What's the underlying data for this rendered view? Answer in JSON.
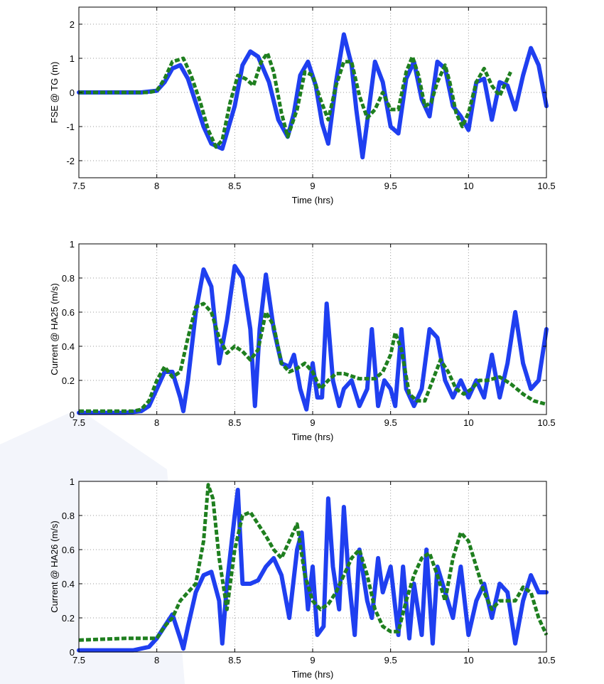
{
  "colors": {
    "series_solid": "#1f3ff0",
    "series_dashed": "#1f7f1f"
  },
  "chart_data": [
    {
      "type": "line",
      "xlabel": "Time (hrs)",
      "ylabel": "FSE @ TG (m)",
      "xlim": [
        7.5,
        10.5
      ],
      "ylim": [
        -2.5,
        2.5
      ],
      "grid": true,
      "x_ticks": [
        7.5,
        8,
        8.5,
        9,
        9.5,
        10,
        10.5
      ],
      "x_tick_labels": [
        "7.5",
        "8",
        "8.5",
        "9",
        "9.5",
        "10",
        "10.5"
      ],
      "y_ticks": [
        -2,
        -1,
        0,
        1,
        2
      ],
      "y_tick_labels": [
        "-2",
        "-1",
        "0",
        "1",
        "2"
      ],
      "series": [
        {
          "style": "solid",
          "x": [
            7.5,
            7.9,
            8.0,
            8.05,
            8.1,
            8.15,
            8.2,
            8.25,
            8.3,
            8.35,
            8.42,
            8.5,
            8.55,
            8.6,
            8.65,
            8.72,
            8.78,
            8.84,
            8.88,
            8.92,
            8.97,
            9.02,
            9.06,
            9.1,
            9.15,
            9.2,
            9.25,
            9.28,
            9.32,
            9.36,
            9.4,
            9.45,
            9.5,
            9.55,
            9.6,
            9.65,
            9.7,
            9.75,
            9.8,
            9.85,
            9.9,
            9.95,
            10.0,
            10.05,
            10.1,
            10.15,
            10.2,
            10.25,
            10.3,
            10.35,
            10.4,
            10.45,
            10.5
          ],
          "y": [
            0.0,
            0.0,
            0.05,
            0.3,
            0.7,
            0.8,
            0.4,
            -0.3,
            -1.0,
            -1.5,
            -1.65,
            -0.4,
            0.8,
            1.2,
            1.05,
            0.3,
            -0.8,
            -1.3,
            -0.6,
            0.5,
            0.9,
            0.2,
            -0.9,
            -1.5,
            0.3,
            1.7,
            0.8,
            -0.5,
            -1.9,
            -0.5,
            0.9,
            0.3,
            -1.0,
            -1.2,
            0.4,
            0.9,
            -0.2,
            -0.7,
            0.9,
            0.7,
            -0.4,
            -0.7,
            -1.1,
            0.3,
            0.4,
            -0.8,
            0.3,
            0.2,
            -0.5,
            0.5,
            1.3,
            0.8,
            -0.4
          ]
        },
        {
          "style": "dashed",
          "x": [
            7.5,
            7.95,
            8.0,
            8.05,
            8.1,
            8.17,
            8.22,
            8.28,
            8.33,
            8.38,
            8.42,
            8.47,
            8.52,
            8.57,
            8.62,
            8.67,
            8.71,
            8.75,
            8.8,
            8.84,
            8.9,
            8.95,
            9.0,
            9.05,
            9.1,
            9.15,
            9.2,
            9.25,
            9.3,
            9.35,
            9.4,
            9.45,
            9.5,
            9.55,
            9.6,
            9.64,
            9.68,
            9.72,
            9.76,
            9.8,
            9.85,
            9.88,
            9.92,
            9.96,
            10.0,
            10.05,
            10.1,
            10.15,
            10.2,
            10.25,
            10.27
          ],
          "y": [
            0.0,
            0.0,
            0.05,
            0.4,
            0.9,
            1.0,
            0.5,
            -0.3,
            -1.1,
            -1.6,
            -1.4,
            -0.3,
            0.5,
            0.4,
            0.2,
            0.9,
            1.15,
            0.6,
            -0.6,
            -1.3,
            -0.5,
            0.6,
            0.5,
            -0.2,
            -0.8,
            0.2,
            0.9,
            0.9,
            -0.1,
            -0.75,
            -0.5,
            0.0,
            -0.5,
            -0.5,
            0.6,
            1.05,
            0.5,
            -0.4,
            -0.3,
            0.3,
            0.8,
            0.3,
            -0.6,
            -1.0,
            -0.6,
            0.3,
            0.7,
            0.2,
            -0.1,
            0.4,
            0.6
          ]
        }
      ]
    },
    {
      "type": "line",
      "xlabel": "Time (hrs)",
      "ylabel": "Current @ HA25 (m/s)",
      "xlim": [
        7.5,
        10.5
      ],
      "ylim": [
        0,
        1
      ],
      "grid": true,
      "x_ticks": [
        7.5,
        8,
        8.5,
        9,
        9.5,
        10,
        10.5
      ],
      "x_tick_labels": [
        "7.5",
        "8",
        "8.5",
        "9",
        "9.5",
        "10",
        "10.5"
      ],
      "y_ticks": [
        0,
        0.2,
        0.4,
        0.6,
        0.8,
        1
      ],
      "y_tick_labels": [
        "0",
        "0.2",
        "0.4",
        "0.6",
        "0.8",
        "1"
      ],
      "series": [
        {
          "style": "solid",
          "x": [
            7.5,
            7.8,
            7.9,
            7.95,
            8.0,
            8.05,
            8.1,
            8.15,
            8.17,
            8.2,
            8.25,
            8.3,
            8.35,
            8.4,
            8.45,
            8.5,
            8.55,
            8.6,
            8.63,
            8.66,
            8.7,
            8.75,
            8.8,
            8.85,
            8.88,
            8.92,
            8.96,
            9.0,
            9.03,
            9.06,
            9.09,
            9.13,
            9.17,
            9.2,
            9.25,
            9.3,
            9.35,
            9.38,
            9.42,
            9.46,
            9.5,
            9.53,
            9.57,
            9.6,
            9.65,
            9.7,
            9.75,
            9.8,
            9.85,
            9.9,
            9.95,
            10.0,
            10.05,
            10.1,
            10.15,
            10.2,
            10.25,
            10.3,
            10.35,
            10.4,
            10.45,
            10.5
          ],
          "y": [
            0.01,
            0.01,
            0.02,
            0.05,
            0.15,
            0.25,
            0.25,
            0.1,
            0.02,
            0.2,
            0.6,
            0.85,
            0.75,
            0.3,
            0.55,
            0.87,
            0.8,
            0.5,
            0.05,
            0.5,
            0.82,
            0.5,
            0.3,
            0.28,
            0.35,
            0.15,
            0.03,
            0.3,
            0.1,
            0.1,
            0.65,
            0.2,
            0.05,
            0.15,
            0.2,
            0.05,
            0.15,
            0.5,
            0.05,
            0.2,
            0.15,
            0.05,
            0.5,
            0.15,
            0.05,
            0.15,
            0.5,
            0.45,
            0.2,
            0.1,
            0.2,
            0.1,
            0.2,
            0.1,
            0.35,
            0.1,
            0.3,
            0.6,
            0.3,
            0.15,
            0.2,
            0.5
          ]
        },
        {
          "style": "dashed",
          "x": [
            7.5,
            7.85,
            7.9,
            7.95,
            8.0,
            8.05,
            8.1,
            8.15,
            8.2,
            8.25,
            8.3,
            8.35,
            8.4,
            8.45,
            8.5,
            8.55,
            8.6,
            8.65,
            8.7,
            8.75,
            8.8,
            8.85,
            8.9,
            8.95,
            9.0,
            9.05,
            9.1,
            9.15,
            9.2,
            9.3,
            9.4,
            9.45,
            9.5,
            9.53,
            9.57,
            9.62,
            9.67,
            9.72,
            9.77,
            9.82,
            9.87,
            9.92,
            9.97,
            10.02,
            10.07,
            10.12,
            10.2,
            10.27,
            10.35,
            10.42,
            10.5
          ],
          "y": [
            0.02,
            0.02,
            0.03,
            0.08,
            0.2,
            0.28,
            0.22,
            0.25,
            0.45,
            0.63,
            0.65,
            0.6,
            0.45,
            0.36,
            0.4,
            0.37,
            0.32,
            0.38,
            0.6,
            0.52,
            0.3,
            0.25,
            0.27,
            0.3,
            0.25,
            0.15,
            0.2,
            0.24,
            0.24,
            0.21,
            0.21,
            0.25,
            0.35,
            0.48,
            0.38,
            0.12,
            0.08,
            0.08,
            0.2,
            0.32,
            0.25,
            0.15,
            0.12,
            0.15,
            0.2,
            0.2,
            0.22,
            0.18,
            0.12,
            0.08,
            0.06
          ]
        }
      ]
    },
    {
      "type": "line",
      "xlabel": "Time (hrs)",
      "ylabel": "Current @ HA26 (m/s)",
      "xlim": [
        7.5,
        10.5
      ],
      "ylim": [
        0,
        1
      ],
      "grid": true,
      "x_ticks": [
        7.5,
        8,
        8.5,
        9,
        9.5,
        10,
        10.5
      ],
      "x_tick_labels": [
        "7.5",
        "8",
        "8.5",
        "9",
        "9.5",
        "10",
        "10.5"
      ],
      "y_ticks": [
        0,
        0.2,
        0.4,
        0.6,
        0.8,
        1
      ],
      "y_tick_labels": [
        "0",
        "0.2",
        "0.4",
        "0.6",
        "0.8",
        "1"
      ],
      "series": [
        {
          "style": "solid",
          "x": [
            7.5,
            7.85,
            7.95,
            8.0,
            8.05,
            8.1,
            8.15,
            8.17,
            8.2,
            8.25,
            8.3,
            8.35,
            8.4,
            8.42,
            8.45,
            8.5,
            8.52,
            8.55,
            8.6,
            8.65,
            8.7,
            8.75,
            8.8,
            8.85,
            8.9,
            8.93,
            8.97,
            9.0,
            9.03,
            9.07,
            9.1,
            9.13,
            9.17,
            9.2,
            9.23,
            9.27,
            9.3,
            9.35,
            9.38,
            9.42,
            9.45,
            9.5,
            9.55,
            9.58,
            9.62,
            9.65,
            9.7,
            9.73,
            9.77,
            9.8,
            9.85,
            9.9,
            9.95,
            10.0,
            10.05,
            10.1,
            10.15,
            10.2,
            10.25,
            10.3,
            10.35,
            10.4,
            10.45,
            10.5
          ],
          "y": [
            0.01,
            0.01,
            0.03,
            0.08,
            0.15,
            0.22,
            0.08,
            0.02,
            0.15,
            0.35,
            0.45,
            0.47,
            0.3,
            0.05,
            0.4,
            0.8,
            0.95,
            0.4,
            0.4,
            0.42,
            0.5,
            0.55,
            0.45,
            0.2,
            0.6,
            0.7,
            0.25,
            0.5,
            0.1,
            0.15,
            0.9,
            0.5,
            0.25,
            0.85,
            0.45,
            0.1,
            0.6,
            0.3,
            0.2,
            0.55,
            0.35,
            0.5,
            0.1,
            0.5,
            0.08,
            0.4,
            0.1,
            0.6,
            0.05,
            0.5,
            0.35,
            0.2,
            0.5,
            0.1,
            0.3,
            0.4,
            0.2,
            0.4,
            0.35,
            0.05,
            0.3,
            0.45,
            0.35,
            0.35
          ]
        },
        {
          "style": "dashed",
          "x": [
            7.5,
            7.8,
            7.9,
            8.0,
            8.05,
            8.1,
            8.15,
            8.2,
            8.25,
            8.3,
            8.33,
            8.36,
            8.4,
            8.45,
            8.5,
            8.55,
            8.6,
            8.65,
            8.7,
            8.75,
            8.8,
            8.85,
            8.9,
            8.95,
            9.0,
            9.05,
            9.1,
            9.15,
            9.2,
            9.25,
            9.3,
            9.35,
            9.4,
            9.45,
            9.5,
            9.55,
            9.6,
            9.65,
            9.7,
            9.75,
            9.8,
            9.85,
            9.9,
            9.95,
            10.0,
            10.05,
            10.1,
            10.15,
            10.2,
            10.25,
            10.3,
            10.35,
            10.4,
            10.45,
            10.5
          ],
          "y": [
            0.07,
            0.08,
            0.08,
            0.08,
            0.15,
            0.2,
            0.3,
            0.35,
            0.4,
            0.65,
            0.98,
            0.9,
            0.55,
            0.25,
            0.6,
            0.8,
            0.82,
            0.75,
            0.68,
            0.6,
            0.55,
            0.65,
            0.75,
            0.45,
            0.3,
            0.25,
            0.28,
            0.35,
            0.45,
            0.55,
            0.6,
            0.45,
            0.25,
            0.15,
            0.12,
            0.12,
            0.3,
            0.45,
            0.55,
            0.58,
            0.45,
            0.3,
            0.55,
            0.7,
            0.65,
            0.5,
            0.35,
            0.25,
            0.3,
            0.3,
            0.3,
            0.38,
            0.35,
            0.2,
            0.1
          ]
        }
      ]
    }
  ]
}
